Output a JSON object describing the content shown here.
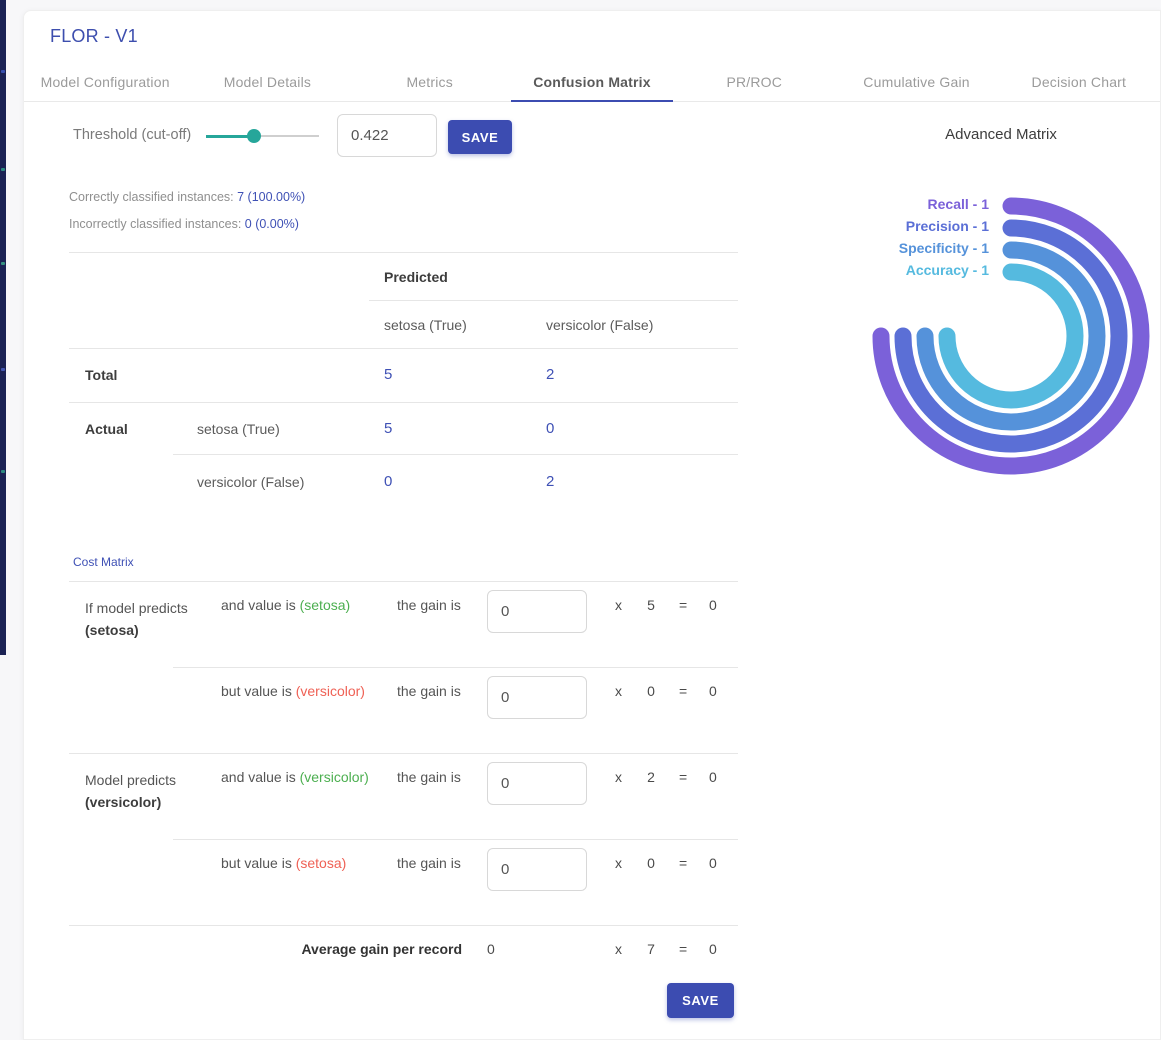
{
  "window": {
    "title": "FLOR - V1"
  },
  "tabs": {
    "items": [
      "Model Configuration",
      "Model Details",
      "Metrics",
      "Confusion Matrix",
      "PR/ROC",
      "Cumulative Gain",
      "Decision Chart"
    ],
    "active": "Confusion Matrix"
  },
  "threshold": {
    "label": "Threshold (cut-off)",
    "value": "0.422",
    "percent": 42.2,
    "save_label": "SAVE"
  },
  "stats": {
    "correct_label": "Correctly classified instances: ",
    "correct_value": "7 (100.00%)",
    "incorrect_label": "Incorrectly classified instances: ",
    "incorrect_value": "0 (0.00%)"
  },
  "confusion": {
    "predicted_label": "Predicted",
    "total_label": "Total",
    "actual_label": "Actual",
    "col_true": "setosa (True)",
    "col_false": "versicolor (False)",
    "total": {
      "true": "5",
      "false": "2"
    },
    "rows": [
      {
        "label": "setosa (True)",
        "true": "5",
        "false": "0"
      },
      {
        "label": "versicolor (False)",
        "true": "0",
        "false": "2"
      }
    ]
  },
  "cost_matrix": {
    "title": "Cost Matrix",
    "gain_label": "the gain is",
    "x_symbol": "x",
    "eq_symbol": "=",
    "rows": [
      {
        "predict_line1": "If model predicts",
        "predict_line2": "(setosa)",
        "cond_prefix": "and value is ",
        "cond_value": "(setosa)",
        "cond_status": "green",
        "gain_value": "0",
        "count": "5",
        "result": "0"
      },
      {
        "predict_line1": "",
        "predict_line2": "",
        "cond_prefix": "but value is ",
        "cond_value": "(versicolor)",
        "cond_status": "red",
        "gain_value": "0",
        "count": "0",
        "result": "0"
      },
      {
        "predict_line1": "Model predicts",
        "predict_line2": "(versicolor)",
        "cond_prefix": "and value is ",
        "cond_value": "(versicolor)",
        "cond_status": "green",
        "gain_value": "0",
        "count": "2",
        "result": "0"
      },
      {
        "predict_line1": "",
        "predict_line2": "",
        "cond_prefix": "but value is ",
        "cond_value": "(setosa)",
        "cond_status": "red",
        "gain_value": "0",
        "count": "0",
        "result": "0"
      }
    ],
    "average": {
      "label": "Average gain per record",
      "value": "0",
      "count": "7",
      "result": "0"
    },
    "save_label": "SAVE"
  },
  "chart_data": {
    "type": "radial_bar",
    "title": "Advanced Matrix",
    "max": 1,
    "sweep_degrees": 270,
    "legend_position": "top-left",
    "series": [
      {
        "name": "Recall",
        "label": "Recall - 1",
        "value": 1,
        "color": "#7b61d9"
      },
      {
        "name": "Precision",
        "label": "Precision - 1",
        "value": 1,
        "color": "#5b6fd6"
      },
      {
        "name": "Specificity",
        "label": "Specificity - 1",
        "value": 1,
        "color": "#5592da"
      },
      {
        "name": "Accuracy",
        "label": "Accuracy - 1",
        "value": 1,
        "color": "#55badf"
      }
    ]
  },
  "colors": {
    "accent": "#3c4cb1",
    "number_blue": "#3f51b5",
    "teal": "#26a69a",
    "green": "#4caf50",
    "red": "#ef6155",
    "sidebar": "#1b2254"
  }
}
